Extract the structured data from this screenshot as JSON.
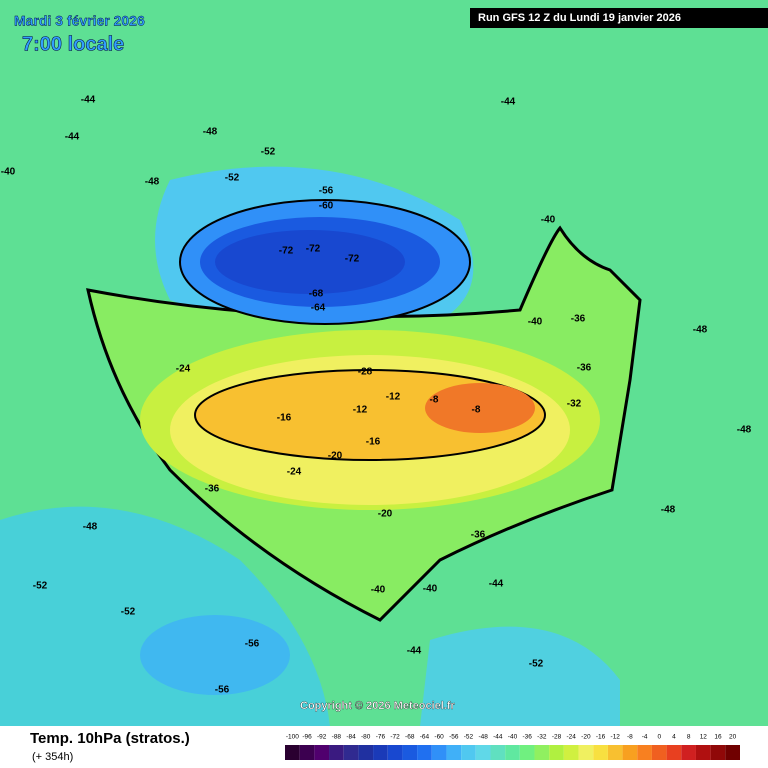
{
  "header": {
    "date": "Mardi 3 février 2026",
    "time": "7:00 locale",
    "run": "Run GFS 12 Z du Lundi 19 janvier 2026"
  },
  "footer": {
    "title": "Temp. 10hPa (stratos.)",
    "lead": "(+ 354h)",
    "copyright": "Copyright © 2026 Meteociel.fr"
  },
  "scale": {
    "labels": [
      -100,
      -96,
      -92,
      -88,
      -84,
      -80,
      -76,
      -72,
      -68,
      -64,
      -60,
      -56,
      -52,
      -48,
      -44,
      -40,
      -36,
      -32,
      -28,
      -24,
      -20,
      -16,
      -12,
      -8,
      -4,
      0,
      4,
      8,
      12,
      16,
      20
    ],
    "colors": [
      "#2a0030",
      "#3c0050",
      "#50006e",
      "#3a1a80",
      "#302a90",
      "#2030a0",
      "#1a3ab8",
      "#1848d0",
      "#1a5ae0",
      "#2070f0",
      "#3090f8",
      "#40b0f8",
      "#50c8f0",
      "#60d8e8",
      "#60e0c0",
      "#60e8a0",
      "#70f080",
      "#90f060",
      "#b0f040",
      "#d0f040",
      "#f0f060",
      "#f8e040",
      "#f8c030",
      "#f8a020",
      "#f88020",
      "#f06020",
      "#e84020",
      "#d02020",
      "#b01010",
      "#900808",
      "#700000"
    ]
  },
  "map": {
    "labels": [
      "-40",
      "-44",
      "-44",
      "-48",
      "-48",
      "-52",
      "-52",
      "-56",
      "-60",
      "-72",
      "-72",
      "-72",
      "-68",
      "-64",
      "-40",
      "-36",
      "-36",
      "-32",
      "-40",
      "-24",
      "-28",
      "-16",
      "-12",
      "-12",
      "-8",
      "-8",
      "-16",
      "-20",
      "-24",
      "-20",
      "-36",
      "-36",
      "-40",
      "-40",
      "-44",
      "-48",
      "-52",
      "-52",
      "-56",
      "-56",
      "-52",
      "-48",
      "-44",
      "-48",
      "-48",
      "-44"
    ]
  }
}
